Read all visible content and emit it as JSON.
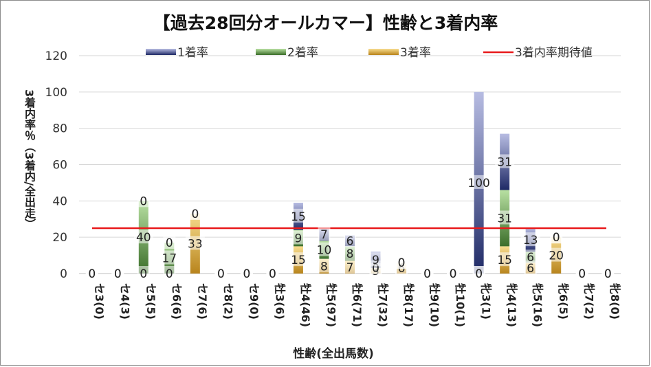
{
  "chart_data": {
    "type": "bar",
    "stacked": true,
    "title": "【過去28回分オールカマー】性齢と3着内率",
    "xlabel": "性齢(全出馬数)",
    "ylabel": "3着内率％（3着内/全出走）",
    "ylim": [
      0,
      120
    ],
    "yticks": [
      0,
      20,
      40,
      60,
      80,
      100,
      120
    ],
    "grid": true,
    "legend_position": "top",
    "categories": [
      "セ3(0)",
      "セ4(3)",
      "セ5(5)",
      "セ6(6)",
      "セ7(6)",
      "セ8(2)",
      "セ9(0)",
      "牡3(6)",
      "牡4(46)",
      "牡5(97)",
      "牡6(71)",
      "牡7(32)",
      "牡8(17)",
      "牡9(10)",
      "牡10(1)",
      "牝3(1)",
      "牝4(13)",
      "牝5(16)",
      "牝6(5)",
      "牝7(2)",
      "牝8(0)"
    ],
    "series": [
      {
        "name": "1着率",
        "color": "#6f74b8",
        "values": [
          0,
          0,
          0,
          0,
          0,
          0,
          0,
          0,
          15,
          7,
          6,
          9,
          0,
          0,
          0,
          100,
          31,
          13,
          0,
          0,
          0
        ]
      },
      {
        "name": "2着率",
        "color": "#6fa356",
        "values": [
          0,
          0,
          40,
          17,
          0,
          0,
          0,
          0,
          9,
          10,
          8,
          0,
          0,
          0,
          0,
          0,
          31,
          6,
          0,
          0,
          0
        ]
      },
      {
        "name": "3着率",
        "color": "#d9a63a",
        "values": [
          0,
          0,
          0,
          0,
          33,
          0,
          0,
          0,
          15,
          8,
          7,
          3,
          6,
          0,
          0,
          0,
          15,
          6,
          20,
          0,
          0
        ]
      }
    ],
    "reference_line": {
      "name": "3着内率期待値",
      "value": 25,
      "color": "#e8191b"
    }
  }
}
